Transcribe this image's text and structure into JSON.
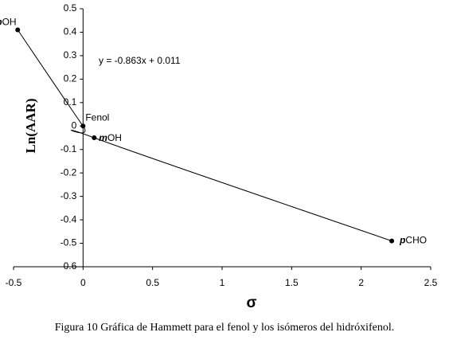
{
  "chart_data": {
    "type": "line",
    "x_label": "σ",
    "y_label": "Ln(AAR)",
    "annotation": "y = -0.863x + 0.011",
    "caption": "Figura 10 Gráfica de Hammett para el fenol y los isómeros del hidróxifenol.",
    "series": [
      {
        "color": "#000000",
        "x": [
          -0.47,
          0,
          0.08,
          2.22
        ],
        "values": [
          0.41,
          0,
          -0.05,
          -0.49
        ],
        "point_labels": [
          {
            "em": "p",
            "text": "OH"
          },
          {
            "text": "Fenol"
          },
          {
            "em": "m",
            "text": "OH"
          },
          {
            "em": "p",
            "text": "CHO"
          }
        ]
      }
    ],
    "xlim": [
      -0.5,
      2.5
    ],
    "xticks": [
      -0.5,
      0,
      0.5,
      1,
      1.5,
      2,
      2.5
    ],
    "ylim": [
      -0.6,
      0.5
    ],
    "yticks": [
      0.5,
      0.4,
      0.3,
      0.2,
      0.1,
      0,
      -0.1,
      -0.2,
      -0.3,
      -0.4,
      -0.5,
      -0.6
    ],
    "grid": false
  }
}
